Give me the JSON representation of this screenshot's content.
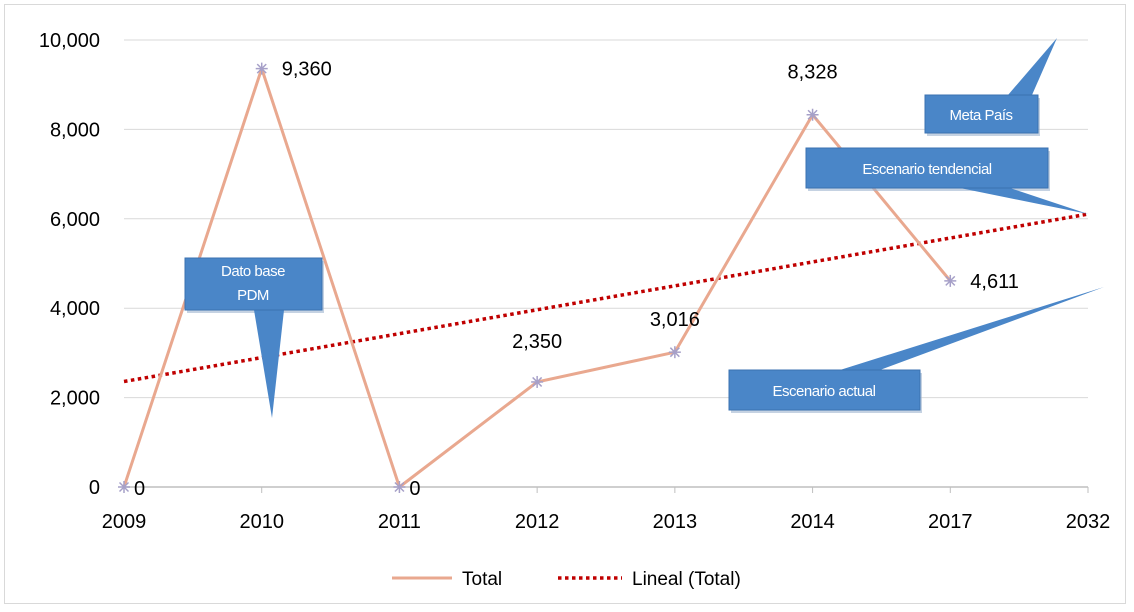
{
  "chart_data": {
    "type": "line",
    "categories": [
      "2009",
      "2010",
      "2011",
      "2012",
      "2013",
      "2014",
      "2017",
      "2032"
    ],
    "series": [
      {
        "name": "Total",
        "values": [
          0,
          9360,
          0,
          2350,
          3016,
          8328,
          4611,
          null
        ],
        "color": "#e9a88f",
        "style": "solid",
        "marker": "asterisk"
      },
      {
        "name": "Lineal (Total)",
        "values": [
          2360,
          2895,
          3430,
          3965,
          4500,
          5035,
          5570,
          6105
        ],
        "color": "#c00000",
        "style": "dotted"
      }
    ],
    "data_labels": [
      "0",
      "9,360",
      "0",
      "2,350",
      "3,016",
      "8,328",
      "4,611"
    ],
    "y_ticks": [
      "0",
      "2,000",
      "4,000",
      "6,000",
      "8,000",
      "10,000"
    ],
    "ylim": [
      0,
      10000
    ],
    "grid": true,
    "legend_position": "bottom",
    "legend": [
      "Total",
      "Lineal (Total)"
    ],
    "callouts": [
      {
        "text": [
          "Dato base",
          "PDM"
        ]
      },
      {
        "text": [
          "Meta  País"
        ]
      },
      {
        "text": [
          "Escenario tendencial"
        ]
      },
      {
        "text": [
          "Escenario actual"
        ]
      }
    ],
    "callout_color": "#4a86c8"
  }
}
